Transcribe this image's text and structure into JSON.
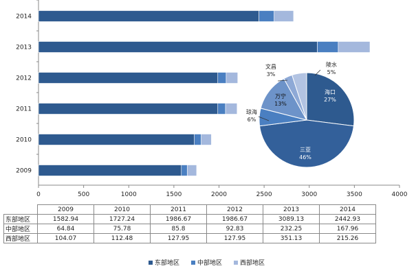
{
  "chart_data": [
    {
      "type": "bar",
      "orientation": "horizontal",
      "stacked": true,
      "categories": [
        "2009",
        "2010",
        "2011",
        "2012",
        "2013",
        "2014"
      ],
      "series": [
        {
          "name": "东部地区",
          "color": "#2e5a8f",
          "values": [
            1582.94,
            1727.24,
            1986.67,
            1986.67,
            3089.13,
            2442.93
          ]
        },
        {
          "name": "中部地区",
          "color": "#4a7fc1",
          "values": [
            64.84,
            75.78,
            85.8,
            92.83,
            232.25,
            167.96
          ]
        },
        {
          "name": "西部地区",
          "color": "#a4b8dd",
          "values": [
            104.07,
            112.48,
            127.95,
            127.95,
            351.13,
            215.26
          ]
        }
      ],
      "xlim": [
        0,
        4000
      ],
      "xticks": [
        "0",
        "500",
        "1000",
        "1500",
        "2000",
        "2500",
        "3000",
        "3500",
        "4000"
      ],
      "table": {
        "headers": [
          "2009",
          "2010",
          "2011",
          "2012",
          "2013",
          "2014"
        ],
        "rows": [
          {
            "label": "东部地区",
            "cells": [
              "1582.94",
              "1727.24",
              "1986.67",
              "1986.67",
              "3089.13",
              "2442.93"
            ]
          },
          {
            "label": "中部地区",
            "cells": [
              "64.84",
              "75.78",
              "85.8",
              "92.83",
              "232.25",
              "167.96"
            ]
          },
          {
            "label": "西部地区",
            "cells": [
              "104.07",
              "112.48",
              "127.95",
              "127.95",
              "351.13",
              "215.26"
            ]
          }
        ]
      },
      "legend": [
        "东部地区",
        "中部地区",
        "西部地区"
      ]
    },
    {
      "type": "pie",
      "slices": [
        {
          "name": "海口",
          "value": 27,
          "pct": "27%",
          "color": "#2e5a8f"
        },
        {
          "name": "三亚",
          "value": 46,
          "pct": "46%",
          "color": "#33609a"
        },
        {
          "name": "琼海",
          "value": 6,
          "pct": "6%",
          "color": "#4a7fc1"
        },
        {
          "name": "万宁",
          "value": 13,
          "pct": "13%",
          "color": "#6d93c9"
        },
        {
          "name": "文昌",
          "value": 3,
          "pct": "3%",
          "color": "#8ea9d6"
        },
        {
          "name": "陵水",
          "value": 5,
          "pct": "5%",
          "color": "#b2c3e2"
        }
      ]
    }
  ]
}
